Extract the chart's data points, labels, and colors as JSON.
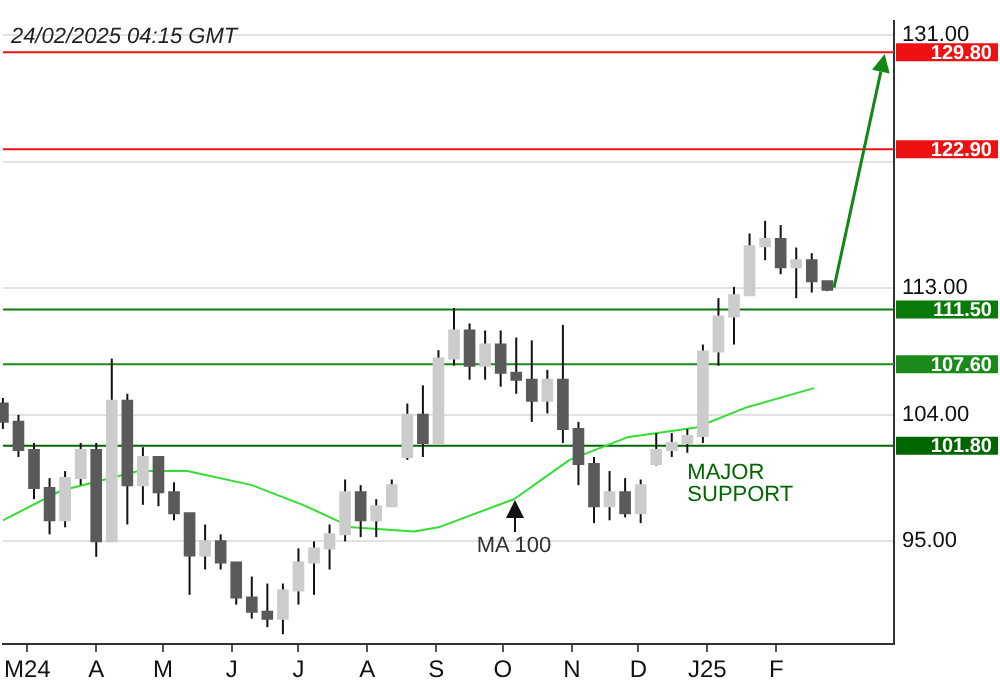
{
  "chart_data": {
    "type": "candlestick",
    "colors": [
      "#5a5a5a",
      "#5a5a5a",
      "#5a5a5a",
      "#5a5a5a",
      "#cccccc",
      "#cccccc",
      "#5a5a5a",
      "#cccccc",
      "#5a5a5a",
      "#cccccc",
      "#5a5a5a",
      "#5a5a5a",
      "#5a5a5a",
      "#cccccc",
      "#5a5a5a",
      "#5a5a5a",
      "#5a5a5a",
      "#5a5a5a",
      "#cccccc",
      "#cccccc",
      "#cccccc",
      "#cccccc",
      "#cccccc",
      "#5a5a5a",
      "#cccccc",
      "#cccccc",
      "#cccccc",
      "#5a5a5a",
      "#cccccc",
      "#cccccc",
      "#5a5a5a",
      "#cccccc",
      "#5a5a5a",
      "#5a5a5a",
      "#5a5a5a",
      "#cccccc",
      "#5a5a5a",
      "#5a5a5a",
      "#5a5a5a",
      "#cccccc",
      "#5a5a5a",
      "#cccccc",
      "#cccccc",
      "#cccccc",
      "#cccccc",
      "#cccccc",
      "#cccccc",
      "#cccccc",
      "#cccccc",
      "#cccccc",
      "#5a5a5a",
      "#cccccc",
      "#5a5a5a",
      "#5a5a5a"
    ],
    "x": [
      "2024-02-19",
      "2024-02-26",
      "2024-03-04",
      "2024-03-11",
      "2024-03-18",
      "2024-03-25",
      "2024-04-01",
      "2024-04-08",
      "2024-04-15",
      "2024-04-22",
      "2024-04-29",
      "2024-05-06",
      "2024-05-13",
      "2024-05-20",
      "2024-05-27",
      "2024-06-03",
      "2024-06-10",
      "2024-06-17",
      "2024-06-24",
      "2024-07-01",
      "2024-07-08",
      "2024-07-15",
      "2024-07-22",
      "2024-07-29",
      "2024-08-05",
      "2024-08-12",
      "2024-08-19",
      "2024-08-26",
      "2024-09-02",
      "2024-09-09",
      "2024-09-16",
      "2024-09-23",
      "2024-09-30",
      "2024-10-07",
      "2024-10-14",
      "2024-10-21",
      "2024-10-28",
      "2024-11-04",
      "2024-11-11",
      "2024-11-18",
      "2024-11-25",
      "2024-12-02",
      "2024-12-09",
      "2024-12-16",
      "2024-12-23",
      "2024-12-30",
      "2025-01-06",
      "2025-01-13",
      "2025-01-20",
      "2025-01-27",
      "2025-02-03",
      "2025-02-10",
      "2025-02-17",
      "2025-02-24"
    ],
    "ohlc": [
      [
        104.8,
        105.2,
        103,
        103.5
      ],
      [
        103.5,
        104,
        101,
        101.5
      ],
      [
        101.5,
        102,
        98,
        98.8
      ],
      [
        98.8,
        99.5,
        95.5,
        96.5
      ],
      [
        96.5,
        100,
        96,
        99.5
      ],
      [
        99.5,
        102,
        99,
        101.5
      ],
      [
        101.5,
        102,
        93.9,
        95
      ],
      [
        95,
        108,
        95,
        105
      ],
      [
        105,
        105.5,
        96.2,
        99
      ],
      [
        99,
        101.7,
        97.6,
        101
      ],
      [
        101,
        101,
        97.5,
        98.5
      ],
      [
        98.5,
        99.2,
        96.5,
        97
      ],
      [
        97,
        97,
        91.2,
        94
      ],
      [
        94,
        96.2,
        93,
        95
      ],
      [
        95,
        95.5,
        93,
        93.5
      ],
      [
        93.5,
        93.5,
        90.5,
        91
      ],
      [
        91,
        92.5,
        89.5,
        90
      ],
      [
        90,
        92,
        88.9,
        89.5
      ],
      [
        89.5,
        92,
        88.4,
        91.5
      ],
      [
        91.5,
        94.5,
        90.5,
        93.5
      ],
      [
        93.5,
        95,
        91.2,
        94.5
      ],
      [
        94.5,
        96.2,
        93,
        95.5
      ],
      [
        95.5,
        99.4,
        95,
        98.5
      ],
      [
        98.5,
        99,
        95.3,
        96.5
      ],
      [
        96.5,
        98,
        95.3,
        97.5
      ],
      [
        97.5,
        99.4,
        97.5,
        99
      ],
      [
        101,
        104.8,
        100.8,
        104
      ],
      [
        104,
        106.1,
        101,
        102
      ],
      [
        102,
        108.6,
        102,
        108
      ],
      [
        108,
        111.6,
        107.5,
        110
      ],
      [
        110,
        110.5,
        106.5,
        107.5
      ],
      [
        107.5,
        110,
        106.5,
        109
      ],
      [
        109,
        110,
        106,
        107
      ],
      [
        107,
        109.5,
        105.5,
        106.5
      ],
      [
        106.5,
        109.3,
        103.5,
        105
      ],
      [
        105,
        107.2,
        104.1,
        106.5
      ],
      [
        106.5,
        110.4,
        102,
        103
      ],
      [
        103,
        103.5,
        99,
        100.5
      ],
      [
        100.5,
        101,
        96.3,
        97.5
      ],
      [
        97.5,
        100,
        96.5,
        98.5
      ],
      [
        98.5,
        99.5,
        96.7,
        97
      ],
      [
        97,
        99.4,
        96.3,
        99
      ],
      [
        100.5,
        102.7,
        100.4,
        101.5
      ],
      [
        101.5,
        102.7,
        101,
        102
      ],
      [
        102,
        103,
        101.3,
        102.5
      ],
      [
        102.5,
        109,
        102,
        108.5
      ],
      [
        108.5,
        112.3,
        107.5,
        111
      ],
      [
        111,
        113.1,
        109,
        112.5
      ],
      [
        112.5,
        116.9,
        112.5,
        116
      ],
      [
        116,
        117.8,
        115,
        116.5
      ],
      [
        116.5,
        117.5,
        114,
        114.5
      ],
      [
        114.5,
        115.9,
        112.3,
        115
      ],
      [
        115,
        115.5,
        112.7,
        113.5
      ],
      [
        113.5,
        113.5,
        112.8,
        112.9
      ]
    ],
    "series": [
      {
        "type": "line",
        "color": "#33dd33",
        "x": [
          "2024-02-19",
          "2024-03-16",
          "2024-04-20",
          "2024-05-12",
          "2024-06-10",
          "2024-07-03",
          "2024-07-25",
          "2024-08-22",
          "2024-09-02",
          "2024-10-06",
          "2024-10-31",
          "2024-11-26",
          "2024-12-27",
          "2025-01-18",
          "2025-02-18"
        ],
        "values": [
          96.5,
          98.6,
          100,
          100,
          99,
          97.6,
          96,
          95.7,
          96,
          98,
          100.8,
          102.4,
          103.1,
          104.5,
          105.9
        ]
      }
    ],
    "xlim": [
      "2024-02-19",
      "2025-03-26"
    ],
    "xticks": [
      {
        "value": "2024-03-01",
        "label": "M24"
      },
      {
        "value": "2024-04-01",
        "label": "A"
      },
      {
        "value": "2024-05-01",
        "label": "M"
      },
      {
        "value": "2024-06-01",
        "label": "J"
      },
      {
        "value": "2024-07-01",
        "label": "J"
      },
      {
        "value": "2024-08-01",
        "label": "A"
      },
      {
        "value": "2024-09-01",
        "label": "S"
      },
      {
        "value": "2024-10-01",
        "label": "O"
      },
      {
        "value": "2024-11-01",
        "label": "N"
      },
      {
        "value": "2024-12-01",
        "label": "D"
      },
      {
        "value": "2025-01-01",
        "label": "J25"
      },
      {
        "value": "2025-02-01",
        "label": "F"
      }
    ],
    "ylim": [
      87.7,
      132
    ],
    "yticks": [
      {
        "value": 95,
        "label": "95.00"
      },
      {
        "value": 104,
        "label": "104.00"
      },
      {
        "value": 113,
        "label": "113.00"
      },
      {
        "value": 122,
        "label": null
      },
      {
        "value": 131,
        "label": "131.00"
      }
    ],
    "grid": "y",
    "marker": "none",
    "legend": false,
    "ref_lines": [
      {
        "axis": "y",
        "value": 129.8,
        "label": "129.80",
        "color": "#ee1111"
      },
      {
        "axis": "y",
        "value": 122.9,
        "label": "122.90",
        "color": "#ee1111"
      },
      {
        "axis": "y",
        "value": 111.5,
        "label": "111.50",
        "color": "#0a7a0a"
      },
      {
        "axis": "y",
        "value": 107.6,
        "label": "107.60",
        "color": "#1a8a1a"
      },
      {
        "axis": "y",
        "value": 101.8,
        "label": "101.80",
        "color": "#006600"
      }
    ],
    "annotations": [
      "24/02/2025 04:15 GMT",
      {
        "text": "MA 100",
        "x": "2024-10-06",
        "y": 98
      },
      {
        "text": "MAJOR SUPPORT",
        "x": "2024-12-23",
        "y": 101.8
      }
    ]
  }
}
